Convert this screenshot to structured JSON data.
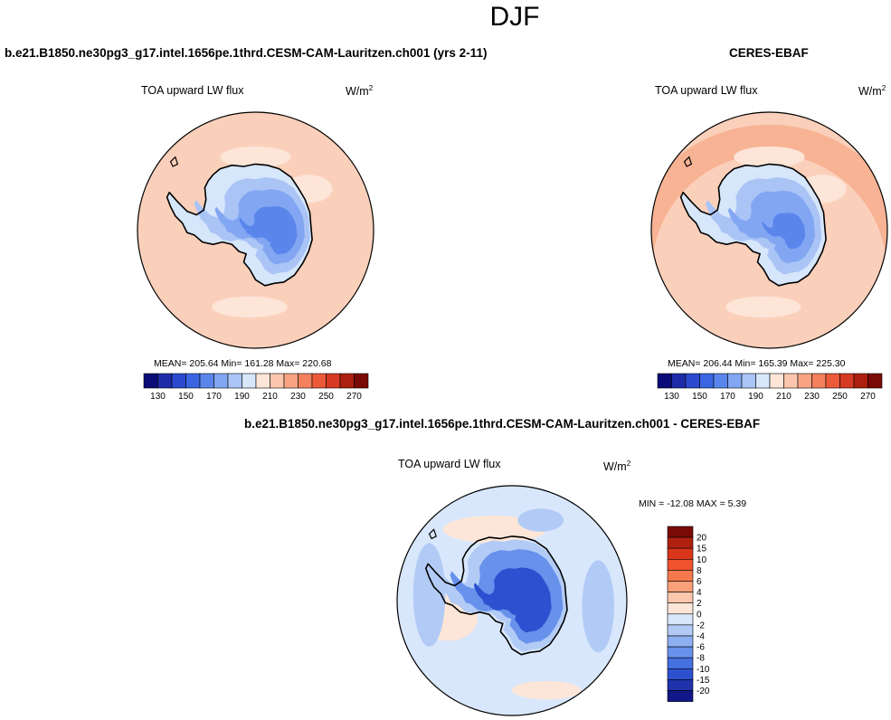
{
  "page": {
    "title": "DJF"
  },
  "panels": [
    {
      "id": "model",
      "case_title": "b.e21.B1850.ne30pg3_g17.intel.1656pe.1thrd.CESM-CAM-Lauritzen.ch001 (yrs 2-11)",
      "variable_label": "TOA upward LW flux",
      "units_base": "W/m",
      "units_exp": "2",
      "stats": "MEAN= 205.64  Min= 161.28  Max= 220.68"
    },
    {
      "id": "obs",
      "case_title": "CERES-EBAF",
      "variable_label": "TOA upward LW flux",
      "units_base": "W/m",
      "units_exp": "2",
      "stats": "MEAN= 206.44  Min= 165.39  Max= 225.30"
    },
    {
      "id": "diff",
      "case_title": "b.e21.B1850.ne30pg3_g17.intel.1656pe.1thrd.CESM-CAM-Lauritzen.ch001 - CERES-EBAF",
      "variable_label": "TOA upward LW flux",
      "units_base": "W/m",
      "units_exp": "2",
      "stats": "MIN = -12.08 MAX =   5.39"
    }
  ],
  "colorbar_main": {
    "colors": [
      "#0b0b78",
      "#1e2ba8",
      "#2b4ad0",
      "#3a66e2",
      "#5a86ec",
      "#82a6f2",
      "#aac4f6",
      "#d6e6fb",
      "#fde5d8",
      "#fbc6ad",
      "#f8a483",
      "#f4805d",
      "#ec5a3a",
      "#d63a22",
      "#ad1f0f",
      "#7a0a05"
    ],
    "labels": [
      "130",
      "150",
      "170",
      "190",
      "210",
      "230",
      "250",
      "270"
    ]
  },
  "colorbar_diff": {
    "colors": [
      "#7a0a05",
      "#b0200f",
      "#d9361b",
      "#f0532d",
      "#f6784e",
      "#f9a07b",
      "#fbc7ad",
      "#fde6d8",
      "#d8e7fb",
      "#b2cbf6",
      "#8eb0f2",
      "#6891ec",
      "#4570e0",
      "#2c50cf",
      "#1f32ab",
      "#111789"
    ],
    "labels": [
      "20",
      "15",
      "10",
      "8",
      "6",
      "4",
      "2",
      "0",
      "-2",
      "-4",
      "-6",
      "-8",
      "-10",
      "-15",
      "-20"
    ]
  },
  "map_colors": {
    "ocean_warm": "#fbd0bb",
    "ocean_light": "#fde5d8",
    "ocean_warmer": "#f7b394",
    "ant_lv1": "#d6e6fb",
    "ant_lv2": "#aac4f6",
    "ant_lv3": "#82a6f2",
    "ant_lv4": "#5a86ec",
    "diff_ocean": "#d8e7fb",
    "diff_pos": "#fde6d8",
    "diff_neg1": "#b2cbf6",
    "diff_neg2": "#6891ec",
    "diff_neg3": "#2c50cf"
  }
}
